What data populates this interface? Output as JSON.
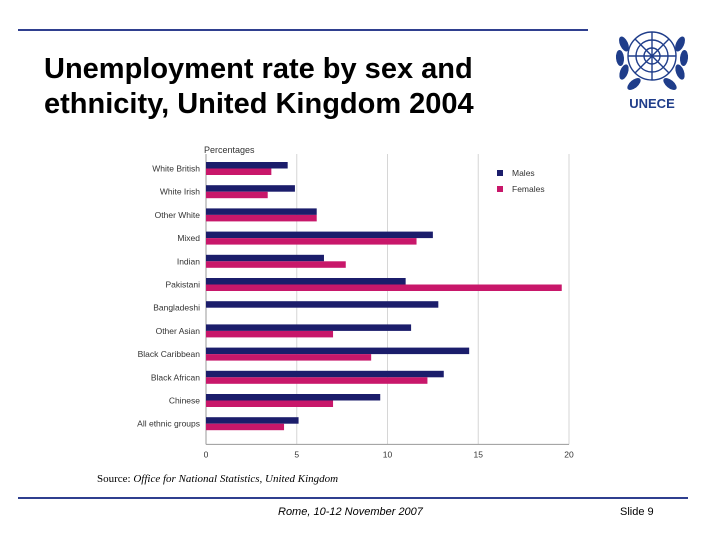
{
  "slide": {
    "title": "Unemployment rate by sex and ethnicity, United Kingdom 2004",
    "logo_text": "UNECE",
    "source_prefix": "Source:",
    "source_text": "Office for National Statistics, United Kingdom",
    "footer_center": "Rome, 10-12 November 2007",
    "footer_right": "Slide 9"
  },
  "colors": {
    "males": "#1b1d6b",
    "females": "#c8176a",
    "rule": "#2f3f8f",
    "logo": "#1f3d8a"
  },
  "chart_data": {
    "type": "bar",
    "orientation": "horizontal",
    "title": "",
    "ylabel": "Percentages",
    "categories": [
      "White British",
      "White Irish",
      "Other White",
      "Mixed",
      "Indian",
      "Pakistani",
      "Bangladeshi",
      "Other Asian",
      "Black Caribbean",
      "Black African",
      "Chinese",
      "All ethnic groups"
    ],
    "series": [
      {
        "name": "Males",
        "values": [
          4.5,
          4.9,
          6.1,
          12.5,
          6.5,
          11.0,
          12.8,
          11.3,
          14.5,
          13.1,
          9.6,
          5.1
        ]
      },
      {
        "name": "Females",
        "values": [
          3.6,
          3.4,
          6.1,
          11.6,
          7.7,
          19.6,
          0,
          7.0,
          9.1,
          12.2,
          7.0,
          4.3
        ]
      }
    ],
    "xlim": [
      0,
      20
    ],
    "xticks": [
      "0",
      "5",
      "10",
      "15",
      "20"
    ],
    "grid": true,
    "legend_position": "top-right"
  }
}
